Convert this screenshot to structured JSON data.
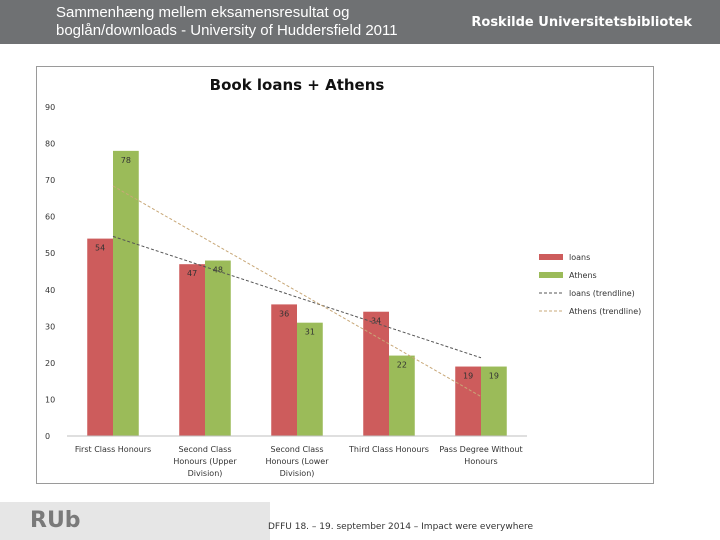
{
  "slide": {
    "title_line1": "Sammenhæng mellem eksamensresultat og",
    "title_line2": "boglån/downloads - University of Huddersfield 2011",
    "organization": "Roskilde Universitetsbibliotek",
    "footer_logo": "RUb",
    "footer_text": "DFFU 18. – 19. september 2014 – Impact were everywhere"
  },
  "colors": {
    "header_bg": "#6f7173",
    "loans": "#cd5c5c",
    "athens": "#9bbb59",
    "loans_trend": "#555555",
    "athens_trend": "#c8a878"
  },
  "chart_data": {
    "type": "bar",
    "title": "Book loans + Athens",
    "categories": [
      "First Class Honours",
      "Second Class Honours (Upper Division)",
      "Second Class Honours (Lower Division)",
      "Third Class Honours",
      "Pass Degree Without Honours"
    ],
    "category_lines": [
      [
        "First Class Honours"
      ],
      [
        "Second Class",
        "Honours (Upper",
        "Division)"
      ],
      [
        "Second Class",
        "Honours (Lower",
        "Division)"
      ],
      [
        "Third Class Honours"
      ],
      [
        "Pass Degree Without",
        "Honours"
      ]
    ],
    "series": [
      {
        "name": "loans",
        "values": [
          54,
          47,
          36,
          34,
          19
        ]
      },
      {
        "name": "Athens",
        "values": [
          78,
          48,
          31,
          22,
          19
        ]
      }
    ],
    "trendlines": [
      {
        "name": "loans (trendline)",
        "series": "loans"
      },
      {
        "name": "Athens (trendline)",
        "series": "Athens"
      }
    ],
    "ylim": [
      0,
      90
    ],
    "yticks": [
      0,
      10,
      20,
      30,
      40,
      50,
      60,
      70,
      80,
      90
    ],
    "grid": false,
    "legend": "right"
  }
}
